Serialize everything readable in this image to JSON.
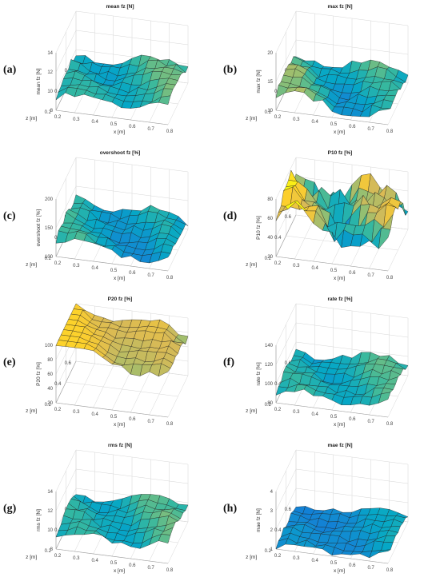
{
  "figure": {
    "panels": [
      {
        "letter": "(a)",
        "title": "mean fz [N]",
        "zlabel": "mean fz [N]",
        "zticks": [
          "8",
          "10",
          "12",
          "14"
        ],
        "base": 0.28,
        "amp": 0.08,
        "tilt": 0.1,
        "cmin": 0.15,
        "cmax": 0.75,
        "noise": 0.05
      },
      {
        "letter": "(b)",
        "title": "max fz [N]",
        "zlabel": "max fz [N]",
        "zticks": [
          "10",
          "15",
          "20"
        ],
        "base": 0.2,
        "amp": 0.1,
        "tilt": -0.1,
        "cmin": 0.05,
        "cmax": 0.85,
        "noise": 0.06
      },
      {
        "letter": "(c)",
        "title": "overshoot fz [%]",
        "zlabel": "overshoot fz [%]",
        "zticks": [
          "100",
          "150",
          "200"
        ],
        "base": 0.22,
        "amp": 0.08,
        "tilt": -0.12,
        "cmin": 0.05,
        "cmax": 0.7,
        "noise": 0.06
      },
      {
        "letter": "(d)",
        "title": "P10 fz [%]",
        "zlabel": "P10 fz [%]",
        "zticks": [
          "20",
          "40",
          "60",
          "80"
        ],
        "base": 0.6,
        "amp": 0.2,
        "tilt": -0.2,
        "cmin": 0.2,
        "cmax": 1.0,
        "noise": 0.18
      },
      {
        "letter": "(e)",
        "title": "P20 fz [%]",
        "zlabel": "P20 fz [%]",
        "zticks": [
          "20",
          "40",
          "60",
          "80",
          "100"
        ],
        "base": 0.85,
        "amp": 0.1,
        "tilt": -0.3,
        "cmin": 0.55,
        "cmax": 1.0,
        "noise": 0.05
      },
      {
        "letter": "(f)",
        "title": "rate fz [%]",
        "zlabel": "rate fz [%]",
        "zticks": [
          "80",
          "100",
          "120",
          "140"
        ],
        "base": 0.2,
        "amp": 0.07,
        "tilt": 0.08,
        "cmin": 0.12,
        "cmax": 0.75,
        "noise": 0.05
      },
      {
        "letter": "(g)",
        "title": "rms fz [N]",
        "zlabel": "rms fz [N]",
        "zticks": [
          "8",
          "10",
          "12",
          "14"
        ],
        "base": 0.28,
        "amp": 0.08,
        "tilt": 0.1,
        "cmin": 0.15,
        "cmax": 0.75,
        "noise": 0.05
      },
      {
        "letter": "(h)",
        "title": "mae fz [N]",
        "zlabel": "mae fz [N]",
        "zticks": [
          "1",
          "2",
          "3",
          "4"
        ],
        "base": 0.08,
        "amp": 0.05,
        "tilt": 0.12,
        "cmin": 0.0,
        "cmax": 0.6,
        "noise": 0.05
      }
    ],
    "xlabel": "x [m]",
    "ylabel": "z [m]",
    "xticks": [
      "0.2",
      "0.3",
      "0.4",
      "0.5",
      "0.6",
      "0.7",
      "0.8"
    ],
    "yticks": [
      "0.2",
      "0.4",
      "0.6"
    ]
  },
  "chart_data": {
    "type": "surface",
    "grid_x": [
      0.2,
      0.3,
      0.4,
      0.5,
      0.6,
      0.7,
      0.8
    ],
    "grid_z": [
      0.2,
      0.4,
      0.6
    ],
    "colormap": "parula",
    "note_free": true
  },
  "colors": {
    "parula": [
      "#352a87",
      "#0363e1",
      "#1485d4",
      "#06a7c6",
      "#38b99e",
      "#92bf73",
      "#d9ba56",
      "#fcce2e",
      "#f9fb0e"
    ]
  }
}
